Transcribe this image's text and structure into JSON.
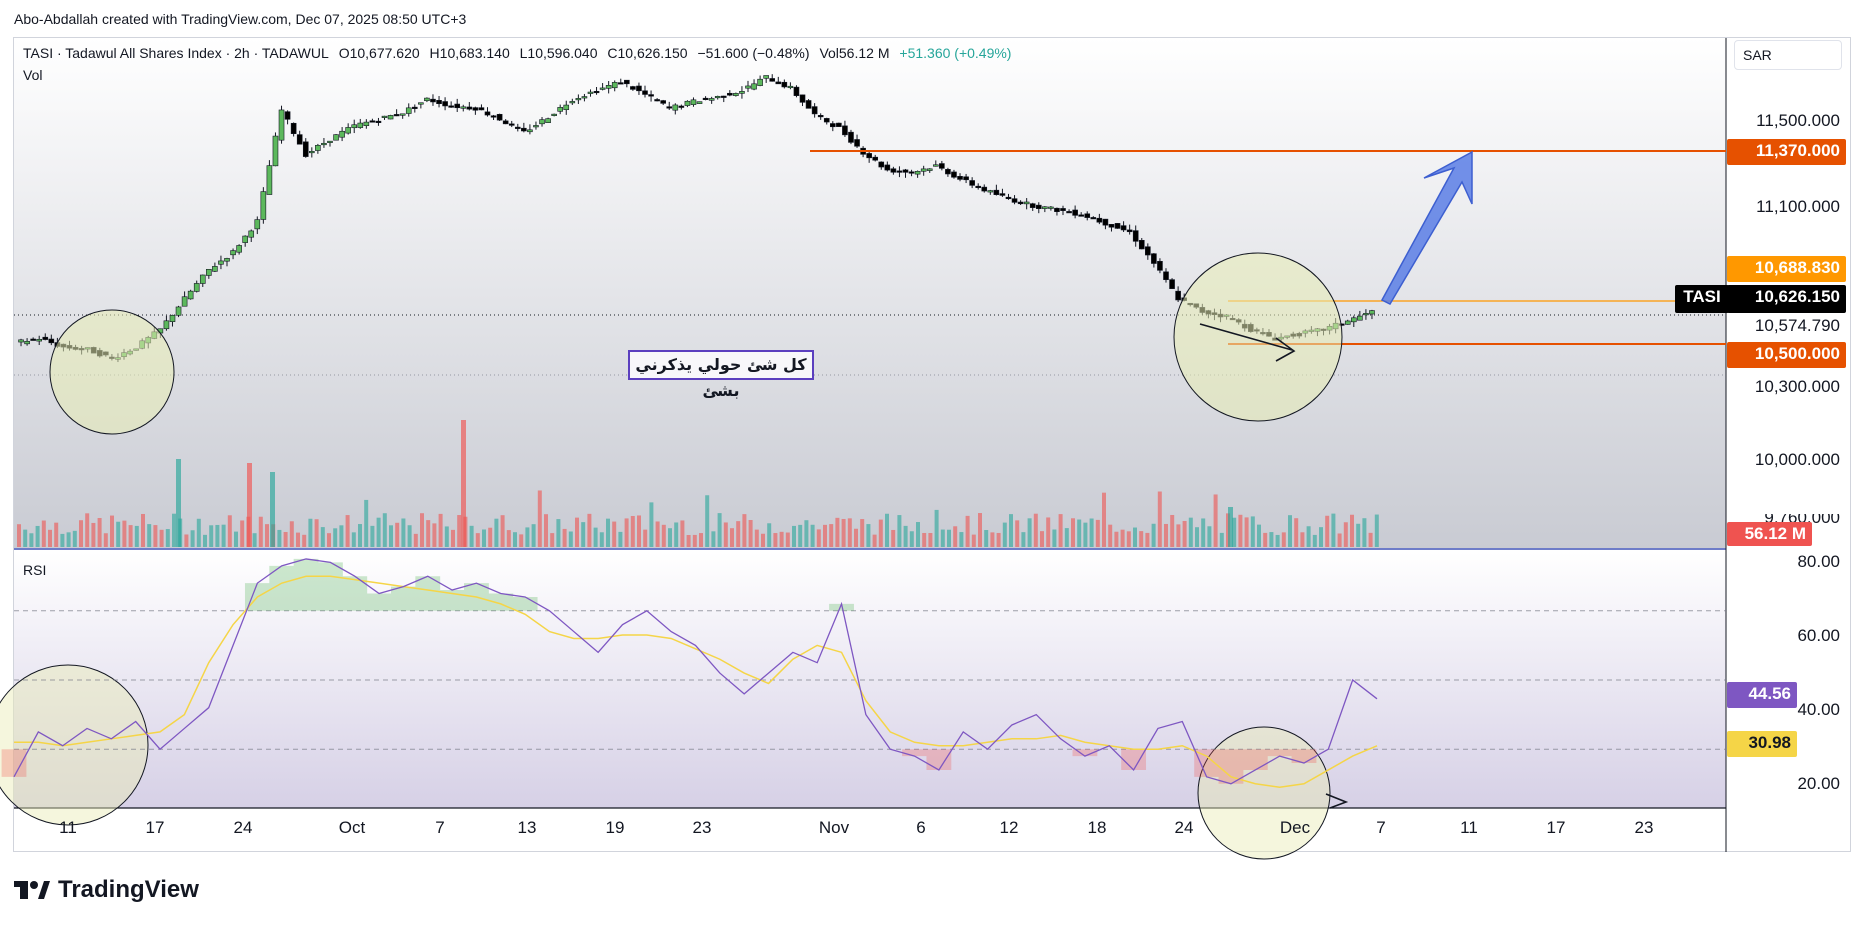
{
  "header": {
    "credit": "Abo-Abdallah created with TradingView.com, Dec 07, 2025 08:50 UTC+3"
  },
  "legend": {
    "symbol": "TASI · Tadawul All Shares Index · 2h · TADAWUL",
    "open": "O10,677.620",
    "high": "H10,683.140",
    "low": "L10,596.040",
    "close": "C10,626.150",
    "change": "−51.600 (−0.48%)",
    "volume": "Vol56.12 M",
    "volume_change": "+51.360 (+0.49%)",
    "vol_pane_label": "Vol",
    "rsi_pane_label": "RSI"
  },
  "currency": "SAR",
  "annotation_text": "كل شئ حولي يذكرني بشئ",
  "price_axis": {
    "labels": [
      "11,500.000",
      "11,100.000",
      "10,574.790",
      "10,300.000",
      "10,000.000",
      "9,760.000"
    ],
    "badges": {
      "resistance": "11,370.000",
      "high": "10,688.830",
      "symbol_tag": "TASI",
      "last": "10,626.150",
      "support": "10,500.000",
      "volume": "56.12 M"
    }
  },
  "rsi_axis": {
    "labels": [
      "80.00",
      "60.00",
      "40.00",
      "20.00"
    ],
    "badges": {
      "rsi": "44.56",
      "rsi_ma": "30.98"
    }
  },
  "time_axis": [
    "11",
    "17",
    "24",
    "Oct",
    "7",
    "13",
    "19",
    "23",
    "Nov",
    "6",
    "12",
    "18",
    "24",
    "Dec",
    "7",
    "11",
    "17",
    "23"
  ],
  "footer": {
    "brand": "TradingView"
  },
  "colors": {
    "up": "#26a69a",
    "up_candle": "#5cb85c",
    "down": "#000000",
    "resistance_line": "#e65100",
    "last_line": "#ff9800",
    "rsi_line": "#7e57c2",
    "rsi_ma": "#f5d547",
    "arrow": "#5b7ee5",
    "circle_fill": "#e8ecb4"
  },
  "chart_data": [
    {
      "type": "candlestick",
      "title": "TASI · Tadawul All Shares Index · 2h · TADAWUL",
      "x_labels": [
        "11",
        "17",
        "24",
        "Oct",
        "7",
        "13",
        "19",
        "23",
        "Nov",
        "6",
        "12",
        "18",
        "24",
        "Dec",
        "7"
      ],
      "close_path": [
        10500,
        10520,
        10480,
        10470,
        10430,
        10480,
        10560,
        10700,
        10830,
        10910,
        11050,
        11550,
        11350,
        11420,
        11480,
        11510,
        11540,
        11600,
        11570,
        11560,
        11510,
        11450,
        11520,
        11600,
        11640,
        11680,
        11620,
        11560,
        11590,
        11610,
        11640,
        11700,
        11650,
        11530,
        11470,
        11360,
        11280,
        11270,
        11300,
        11240,
        11190,
        11150,
        11120,
        11100,
        11080,
        11040,
        11000,
        10860,
        10700,
        10640,
        10620,
        10560,
        10520,
        10540,
        10560,
        10600,
        10640
      ],
      "resistance": 11370,
      "support": 10500,
      "last": 10626.15,
      "ylim": [
        9700,
        11750
      ]
    },
    {
      "type": "bar",
      "title": "Vol",
      "last": "56.12 M"
    },
    {
      "type": "line",
      "title": "RSI",
      "series": [
        {
          "values": [
            22,
            35,
            31,
            36,
            33,
            38,
            30,
            36,
            42,
            60,
            78,
            83,
            85,
            84,
            80,
            75,
            77,
            80,
            76,
            78,
            75,
            74,
            70,
            64,
            58,
            66,
            70,
            64,
            60,
            52,
            46,
            52,
            58,
            55,
            72,
            40,
            30,
            28,
            24,
            35,
            30,
            37,
            40,
            33,
            28,
            31,
            24,
            36,
            38,
            22,
            20,
            24,
            28,
            26,
            30,
            50,
            44.56
          ]
        },
        {
          "values": [
            32,
            32,
            31,
            32,
            33,
            34,
            35,
            40,
            55,
            66,
            74,
            78,
            80,
            80,
            79,
            78,
            77,
            76,
            75,
            74,
            72,
            69,
            64,
            62,
            62,
            63,
            63,
            62,
            59,
            56,
            52,
            49,
            56,
            60,
            58,
            44,
            35,
            32,
            31,
            31,
            32,
            33,
            33,
            34,
            32,
            31,
            30,
            30,
            31,
            28,
            22,
            20,
            19,
            20,
            24,
            28,
            30.98
          ]
        }
      ],
      "ylim": [
        13,
        87
      ]
    }
  ]
}
